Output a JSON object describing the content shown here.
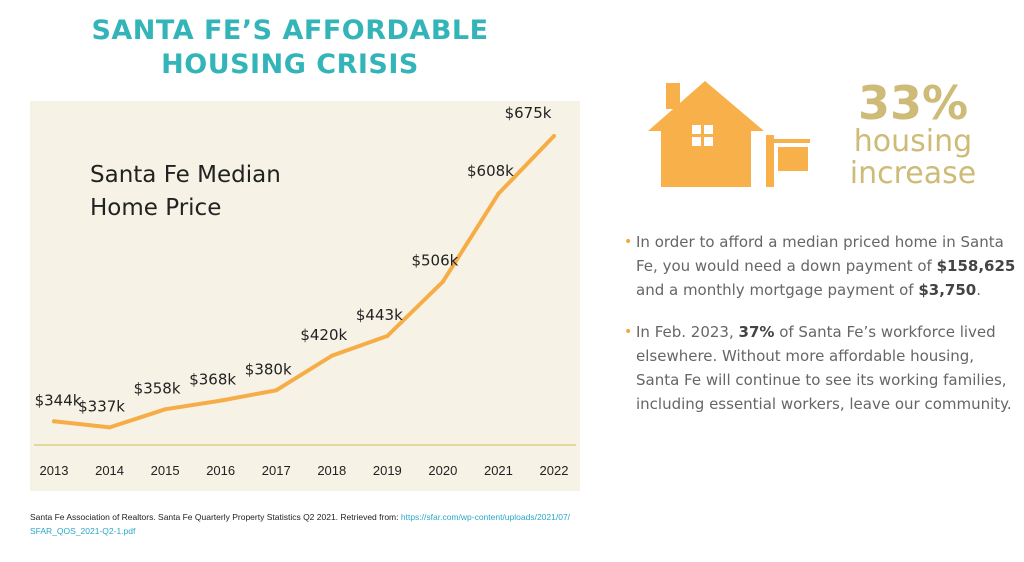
{
  "headline": {
    "line1": "SANTA FE’S AFFORDABLE",
    "line2": "HOUSING CRISIS"
  },
  "colors": {
    "headline": "#32b4b9",
    "accent_orange": "#f7b04a",
    "line": "#f6ad48",
    "stat_gold": "#cdbb77",
    "panel_bg": "#f6f3e6",
    "axis": "#e4d99a"
  },
  "chart_data": {
    "type": "line",
    "title_line1": "Santa Fe Median",
    "title_line2": "Home Price",
    "xlabel": "",
    "ylabel": "",
    "unit": "$k",
    "categories": [
      "2013",
      "2014",
      "2015",
      "2016",
      "2017",
      "2018",
      "2019",
      "2020",
      "2021",
      "2022"
    ],
    "values": [
      344,
      337,
      358,
      368,
      380,
      420,
      443,
      506,
      608,
      675
    ],
    "data_labels": [
      "$344k",
      "$337k",
      "$358k",
      "$368k",
      "$380k",
      "$420k",
      "$443k",
      "$506k",
      "$608k",
      "$675k"
    ],
    "ylim": [
      300,
      700
    ],
    "grid": false,
    "legend": "none"
  },
  "source": {
    "text": "Santa Fe Association of Realtors. Santa Fe Quarterly Property Statistics Q2 2021. Retrieved from: ",
    "url_line1": "https://sfar.com/wp-content/uploads/2021/07/",
    "url_line2": "SFAR_QOS_2021-Q2-1.pdf"
  },
  "stat": {
    "number": "33%",
    "label_line1": "housing",
    "label_line2": "increase",
    "icon": "house-for-sale-icon"
  },
  "bullets": {
    "b1_pre": "In order to afford a median priced home in Santa Fe, you would need a down payment of ",
    "b1_bold1": "$158,625",
    "b1_mid": " and a monthly mortgage payment of ",
    "b1_bold2": "$3,750",
    "b1_post": ".",
    "b2_pre": "In Feb. 2023, ",
    "b2_bold": "37%",
    "b2_post": " of Santa Fe’s workforce lived elsewhere. Without more affordable housing, Santa Fe will continue to see its working families, including essential workers, leave our community."
  }
}
